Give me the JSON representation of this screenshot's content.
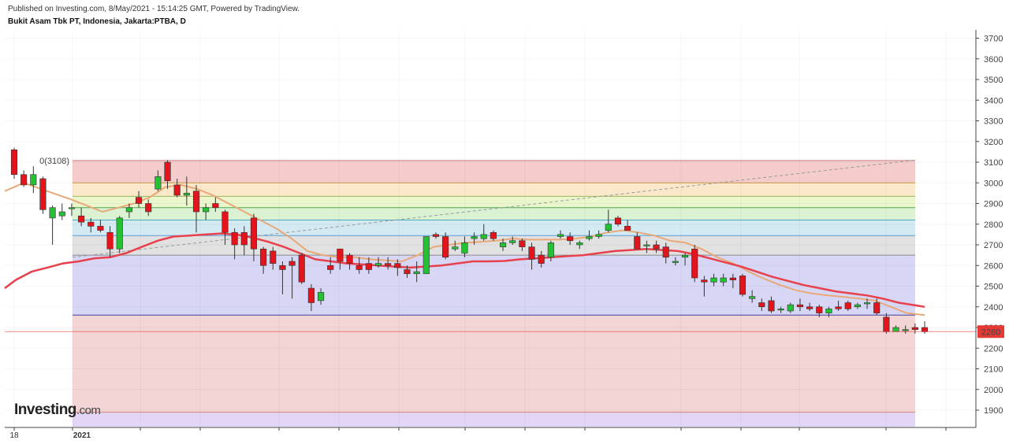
{
  "header": {
    "published": "Published on Investing.com, 8/May/2021 - 15:14:25 GMT, Powered by TradingView.",
    "symbol": "Bukit Asam Tbk PT, Indonesia, Jakarta:PTBA, D"
  },
  "logo": {
    "brand": "Investing",
    "domain": ".com"
  },
  "chart_data": {
    "type": "candlestick",
    "title": "Bukit Asam Tbk PT, Indonesia, Jakarta:PTBA, D",
    "ylim": [
      1820,
      3740
    ],
    "yticks": [
      1900,
      2000,
      2100,
      2200,
      2300,
      2400,
      2500,
      2600,
      2700,
      2800,
      2900,
      3000,
      3100,
      3200,
      3300,
      3400,
      3500,
      3600,
      3700
    ],
    "xlabels": [
      "18",
      "2021"
    ],
    "last_price": {
      "value": 2280,
      "label": "2280",
      "color": "#e53935"
    },
    "grid": true,
    "colors": {
      "up": "#22c232",
      "down": "#e3141b",
      "sma_fast": "#e8a878",
      "sma_slow": "#e8404c"
    },
    "fib_levels": [
      {
        "value": 3108,
        "label": "0(3108)",
        "fill": "#f4c7c7",
        "line": "#d08080"
      },
      {
        "value": 3000,
        "label": "",
        "fill": "#fbe6c5",
        "line": "#d09a40"
      },
      {
        "value": 2935,
        "label": "",
        "fill": "#e9f5c8",
        "line": "#9ab85a"
      },
      {
        "value": 2880,
        "label": "",
        "fill": "#d6efcd",
        "line": "#4fa84f"
      },
      {
        "value": 2820,
        "label": "",
        "fill": "#cfe8f1",
        "line": "#4aa8b8"
      },
      {
        "value": 2745,
        "label": "",
        "fill": "#dedede",
        "line": "#5a9ed6"
      },
      {
        "value": 2650,
        "label": "",
        "fill": "#d3d3f4",
        "line": "#8a8a8a"
      },
      {
        "value": 2360,
        "label": "",
        "fill": "#f3d0d0",
        "line": "#4040a0"
      },
      {
        "value": 1890,
        "label": "",
        "fill": "#e0d0f4",
        "line": "#d08080"
      },
      {
        "value": 1820,
        "label": "",
        "fill": "",
        "line": ""
      }
    ],
    "trend_line": {
      "from": [
        0,
        2640
      ],
      "to": [
        1,
        3110
      ]
    },
    "candles": [
      [
        3160,
        3170,
        3020,
        3040
      ],
      [
        3040,
        3060,
        2980,
        2990
      ],
      [
        2990,
        3080,
        2950,
        3040
      ],
      [
        3020,
        3030,
        2850,
        2870
      ],
      [
        2830,
        2890,
        2700,
        2880
      ],
      [
        2840,
        2900,
        2820,
        2860
      ],
      [
        2880,
        2900,
        2840,
        2880
      ],
      [
        2840,
        2880,
        2790,
        2810
      ],
      [
        2810,
        2830,
        2760,
        2790
      ],
      [
        2790,
        2820,
        2760,
        2770
      ],
      [
        2760,
        2790,
        2640,
        2680
      ],
      [
        2680,
        2840,
        2660,
        2830
      ],
      [
        2860,
        2900,
        2830,
        2880
      ],
      [
        2930,
        2960,
        2880,
        2900
      ],
      [
        2900,
        2920,
        2840,
        2860
      ],
      [
        2970,
        3060,
        2960,
        3030
      ],
      [
        3100,
        3110,
        2970,
        3010
      ],
      [
        2990,
        3020,
        2930,
        2940
      ],
      [
        2940,
        3030,
        2890,
        2950
      ],
      [
        2960,
        2990,
        2760,
        2860
      ],
      [
        2860,
        2900,
        2820,
        2880
      ],
      [
        2900,
        2930,
        2860,
        2880
      ],
      [
        2860,
        2870,
        2700,
        2760
      ],
      [
        2760,
        2780,
        2630,
        2700
      ],
      [
        2760,
        2790,
        2650,
        2700
      ],
      [
        2830,
        2850,
        2620,
        2680
      ],
      [
        2680,
        2690,
        2560,
        2600
      ],
      [
        2670,
        2690,
        2580,
        2610
      ],
      [
        2600,
        2620,
        2460,
        2580
      ],
      [
        2620,
        2640,
        2440,
        2600
      ],
      [
        2650,
        2660,
        2510,
        2520
      ],
      [
        2490,
        2510,
        2380,
        2420
      ],
      [
        2430,
        2490,
        2410,
        2470
      ],
      [
        2600,
        2640,
        2560,
        2580
      ],
      [
        2680,
        2680,
        2580,
        2620
      ],
      [
        2650,
        2660,
        2580,
        2610
      ],
      [
        2600,
        2640,
        2560,
        2580
      ],
      [
        2610,
        2640,
        2560,
        2580
      ],
      [
        2600,
        2640,
        2590,
        2610
      ],
      [
        2610,
        2640,
        2580,
        2600
      ],
      [
        2610,
        2630,
        2550,
        2590
      ],
      [
        2580,
        2600,
        2540,
        2560
      ],
      [
        2560,
        2620,
        2520,
        2570
      ],
      [
        2560,
        2740,
        2560,
        2740
      ],
      [
        2750,
        2760,
        2730,
        2740
      ],
      [
        2740,
        2760,
        2630,
        2640
      ],
      [
        2680,
        2720,
        2670,
        2690
      ],
      [
        2660,
        2740,
        2640,
        2710
      ],
      [
        2730,
        2760,
        2700,
        2740
      ],
      [
        2730,
        2800,
        2720,
        2750
      ],
      [
        2760,
        2770,
        2720,
        2730
      ],
      [
        2690,
        2730,
        2670,
        2710
      ],
      [
        2710,
        2740,
        2700,
        2720
      ],
      [
        2720,
        2730,
        2670,
        2690
      ],
      [
        2690,
        2710,
        2580,
        2630
      ],
      [
        2650,
        2670,
        2590,
        2610
      ],
      [
        2640,
        2720,
        2620,
        2710
      ],
      [
        2740,
        2770,
        2730,
        2750
      ],
      [
        2740,
        2760,
        2700,
        2720
      ],
      [
        2700,
        2720,
        2680,
        2710
      ],
      [
        2730,
        2770,
        2720,
        2740
      ],
      [
        2740,
        2770,
        2730,
        2750
      ],
      [
        2770,
        2870,
        2760,
        2800
      ],
      [
        2830,
        2840,
        2790,
        2800
      ],
      [
        2790,
        2820,
        2770,
        2770
      ],
      [
        2740,
        2760,
        2680,
        2680
      ],
      [
        2700,
        2720,
        2660,
        2700
      ],
      [
        2700,
        2720,
        2660,
        2680
      ],
      [
        2690,
        2710,
        2610,
        2640
      ],
      [
        2620,
        2640,
        2600,
        2620
      ],
      [
        2640,
        2660,
        2600,
        2650
      ],
      [
        2680,
        2700,
        2520,
        2540
      ],
      [
        2530,
        2550,
        2450,
        2520
      ],
      [
        2520,
        2560,
        2500,
        2540
      ],
      [
        2520,
        2560,
        2500,
        2540
      ],
      [
        2540,
        2560,
        2490,
        2530
      ],
      [
        2550,
        2560,
        2450,
        2460
      ],
      [
        2440,
        2480,
        2420,
        2450
      ],
      [
        2420,
        2440,
        2380,
        2400
      ],
      [
        2430,
        2450,
        2370,
        2380
      ],
      [
        2390,
        2400,
        2370,
        2390
      ],
      [
        2380,
        2420,
        2370,
        2410
      ],
      [
        2410,
        2440,
        2380,
        2400
      ],
      [
        2400,
        2420,
        2380,
        2390
      ],
      [
        2400,
        2410,
        2350,
        2370
      ],
      [
        2370,
        2400,
        2350,
        2390
      ],
      [
        2400,
        2430,
        2380,
        2390
      ],
      [
        2420,
        2430,
        2380,
        2390
      ],
      [
        2400,
        2420,
        2390,
        2410
      ],
      [
        2420,
        2440,
        2390,
        2420
      ],
      [
        2420,
        2440,
        2360,
        2370
      ],
      [
        2350,
        2370,
        2270,
        2280
      ],
      [
        2280,
        2310,
        2280,
        2300
      ],
      [
        2290,
        2310,
        2270,
        2290
      ],
      [
        2300,
        2320,
        2270,
        2290
      ],
      [
        2300,
        2330,
        2270,
        2280
      ]
    ],
    "candle_x_range": [
      18,
      1173
    ],
    "sma_fast": [
      [
        6,
        2960
      ],
      [
        30,
        3000
      ],
      [
        60,
        2960
      ],
      [
        90,
        2920
      ],
      [
        110,
        2890
      ],
      [
        130,
        2860
      ],
      [
        150,
        2880
      ],
      [
        170,
        2900
      ],
      [
        190,
        2930
      ],
      [
        210,
        2980
      ],
      [
        230,
        2990
      ],
      [
        250,
        2970
      ],
      [
        270,
        2940
      ],
      [
        290,
        2900
      ],
      [
        310,
        2860
      ],
      [
        330,
        2820
      ],
      [
        350,
        2780
      ],
      [
        370,
        2730
      ],
      [
        390,
        2670
      ],
      [
        410,
        2650
      ],
      [
        430,
        2640
      ],
      [
        450,
        2640
      ],
      [
        470,
        2630
      ],
      [
        490,
        2625
      ],
      [
        510,
        2620
      ],
      [
        530,
        2650
      ],
      [
        550,
        2690
      ],
      [
        570,
        2700
      ],
      [
        590,
        2710
      ],
      [
        610,
        2715
      ],
      [
        630,
        2720
      ],
      [
        650,
        2730
      ],
      [
        670,
        2725
      ],
      [
        690,
        2725
      ],
      [
        710,
        2725
      ],
      [
        730,
        2730
      ],
      [
        750,
        2740
      ],
      [
        770,
        2760
      ],
      [
        790,
        2770
      ],
      [
        810,
        2760
      ],
      [
        830,
        2745
      ],
      [
        850,
        2720
      ],
      [
        870,
        2710
      ],
      [
        890,
        2680
      ],
      [
        910,
        2640
      ],
      [
        930,
        2610
      ],
      [
        950,
        2570
      ],
      [
        970,
        2535
      ],
      [
        990,
        2505
      ],
      [
        1010,
        2480
      ],
      [
        1030,
        2465
      ],
      [
        1050,
        2455
      ],
      [
        1070,
        2448
      ],
      [
        1090,
        2440
      ],
      [
        1110,
        2430
      ],
      [
        1130,
        2400
      ],
      [
        1150,
        2370
      ],
      [
        1173,
        2360
      ]
    ],
    "sma_slow": [
      [
        6,
        2490
      ],
      [
        20,
        2530
      ],
      [
        40,
        2570
      ],
      [
        60,
        2590
      ],
      [
        80,
        2610
      ],
      [
        100,
        2620
      ],
      [
        120,
        2635
      ],
      [
        140,
        2640
      ],
      [
        160,
        2660
      ],
      [
        180,
        2690
      ],
      [
        200,
        2720
      ],
      [
        220,
        2740
      ],
      [
        240,
        2745
      ],
      [
        260,
        2750
      ],
      [
        280,
        2755
      ],
      [
        300,
        2750
      ],
      [
        320,
        2735
      ],
      [
        340,
        2715
      ],
      [
        360,
        2690
      ],
      [
        380,
        2660
      ],
      [
        400,
        2630
      ],
      [
        420,
        2620
      ],
      [
        440,
        2610
      ],
      [
        460,
        2605
      ],
      [
        480,
        2600
      ],
      [
        500,
        2595
      ],
      [
        520,
        2590
      ],
      [
        540,
        2595
      ],
      [
        560,
        2600
      ],
      [
        580,
        2610
      ],
      [
        600,
        2620
      ],
      [
        620,
        2620
      ],
      [
        640,
        2622
      ],
      [
        660,
        2630
      ],
      [
        680,
        2635
      ],
      [
        700,
        2640
      ],
      [
        720,
        2645
      ],
      [
        740,
        2650
      ],
      [
        760,
        2660
      ],
      [
        780,
        2670
      ],
      [
        800,
        2675
      ],
      [
        820,
        2680
      ],
      [
        840,
        2675
      ],
      [
        860,
        2670
      ],
      [
        880,
        2655
      ],
      [
        900,
        2635
      ],
      [
        920,
        2615
      ],
      [
        940,
        2595
      ],
      [
        960,
        2570
      ],
      [
        980,
        2545
      ],
      [
        1000,
        2525
      ],
      [
        1020,
        2505
      ],
      [
        1040,
        2490
      ],
      [
        1060,
        2475
      ],
      [
        1080,
        2465
      ],
      [
        1100,
        2455
      ],
      [
        1120,
        2440
      ],
      [
        1140,
        2420
      ],
      [
        1160,
        2408
      ],
      [
        1173,
        2400
      ]
    ]
  }
}
